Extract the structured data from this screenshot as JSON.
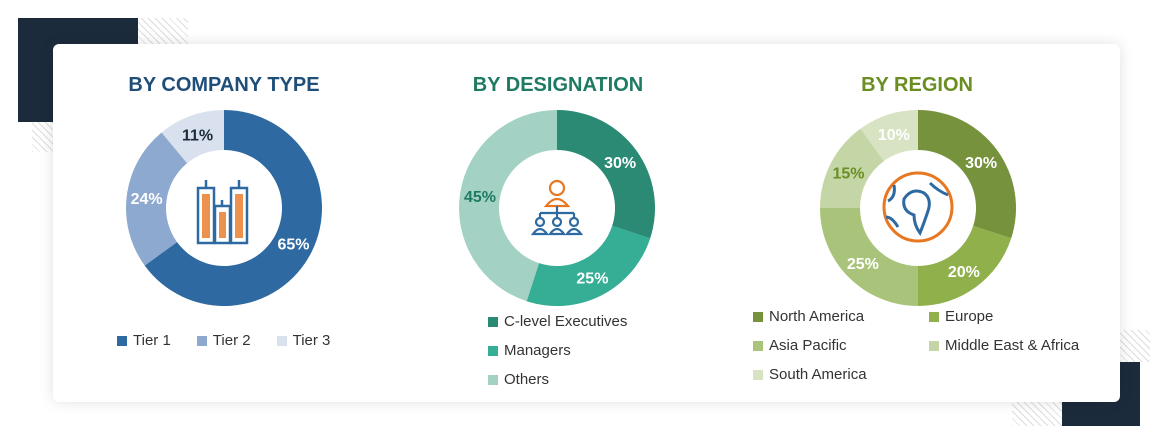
{
  "chart_data": [
    {
      "type": "pie",
      "title": "BY COMPANY TYPE",
      "title_color": "#1f4e79",
      "icon": "buildings-icon",
      "categories": [
        "Tier 1",
        "Tier 2",
        "Tier 3"
      ],
      "values": [
        65,
        24,
        11
      ],
      "labels": [
        "65%",
        "24%",
        "11%"
      ],
      "colors": [
        "#2e6aa1",
        "#8ea9cf",
        "#d9e1ee"
      ],
      "label_colors": [
        "#ffffff",
        "#ffffff",
        "#1c2b3c"
      ],
      "legend": "bottom"
    },
    {
      "type": "pie",
      "title": "BY DESIGNATION",
      "title_color": "#1e7a62",
      "icon": "hierarchy-people-icon",
      "categories": [
        "C-level Executives",
        "Managers",
        "Others"
      ],
      "values": [
        30,
        25,
        45
      ],
      "labels": [
        "30%",
        "25%",
        "45%"
      ],
      "colors": [
        "#2a8a74",
        "#35ae95",
        "#a3d2c4"
      ],
      "label_colors": [
        "#ffffff",
        "#ffffff",
        "#1e7a62"
      ],
      "legend": "bottom"
    },
    {
      "type": "pie",
      "title": "BY REGION",
      "title_color": "#6b8e23",
      "icon": "globe-icon",
      "categories": [
        "North America",
        "Europe",
        "Asia Pacific",
        "Middle East & Africa",
        "South America"
      ],
      "values": [
        30,
        20,
        25,
        15,
        10
      ],
      "labels": [
        "30%",
        "20%",
        "25%",
        "15%",
        "10%"
      ],
      "colors": [
        "#76923c",
        "#8fb04a",
        "#a9c47a",
        "#c5d6a6",
        "#d7e3c2"
      ],
      "label_colors": [
        "#ffffff",
        "#ffffff",
        "#ffffff",
        "#6b8e23",
        "#ffffff"
      ],
      "legend": "bottom"
    }
  ]
}
